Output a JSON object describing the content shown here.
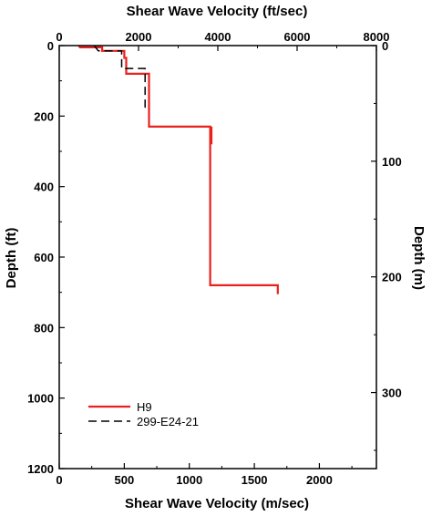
{
  "chart_data": {
    "type": "line",
    "title": "",
    "top_xlabel": "Shear Wave Velocity (ft/sec)",
    "bottom_xlabel": "Shear Wave Velocity (m/sec)",
    "left_ylabel": "Depth (ft)",
    "right_ylabel": "Depth (m)",
    "xlim_ms": [
      0,
      2438.4
    ],
    "xlim_fts": [
      0,
      8000
    ],
    "ylim_ft": [
      0,
      1200
    ],
    "ylim_m": [
      0,
      365.76
    ],
    "y_inverted": true,
    "grid": false,
    "legend_position": "bottom-left",
    "bottom_ticks": [
      "0",
      "500",
      "1000",
      "1500",
      "2000"
    ],
    "bottom_tick_values": [
      0,
      500,
      1000,
      1500,
      2000
    ],
    "top_ticks": [
      "0",
      "2000",
      "4000",
      "6000",
      "8000"
    ],
    "top_tick_values": [
      0,
      2000,
      4000,
      6000,
      8000
    ],
    "left_ticks": [
      "0",
      "200",
      "400",
      "600",
      "800",
      "1000",
      "1200"
    ],
    "left_tick_values": [
      0,
      200,
      400,
      600,
      800,
      1000,
      1200
    ],
    "right_ticks": [
      "0",
      "100",
      "200",
      "300"
    ],
    "right_tick_values": [
      0,
      100,
      200,
      300
    ],
    "series": [
      {
        "name": "H9",
        "color": "#e8201e",
        "style": "solid",
        "x_units": "m/sec",
        "y_units": "ft",
        "points": [
          [
            150,
            0
          ],
          [
            160,
            5
          ],
          [
            330,
            5
          ],
          [
            330,
            15
          ],
          [
            500,
            15
          ],
          [
            500,
            35
          ],
          [
            515,
            35
          ],
          [
            515,
            80
          ],
          [
            690,
            80
          ],
          [
            690,
            230
          ],
          [
            1160,
            230
          ],
          [
            1160,
            680
          ],
          [
            1680,
            680
          ],
          [
            1680,
            705
          ]
        ]
      },
      {
        "name": "299-E24-21",
        "color": "#000000",
        "style": "dashed",
        "x_units": "m/sec",
        "y_units": "ft",
        "points": [
          [
            270,
            0
          ],
          [
            300,
            15
          ],
          [
            480,
            15
          ],
          [
            480,
            65
          ],
          [
            660,
            65
          ],
          [
            660,
            185
          ]
        ]
      }
    ],
    "extra_segments": [
      {
        "series": "H9",
        "x_units": "m/sec",
        "y_units": "ft",
        "points": [
          [
            1170,
            230
          ],
          [
            1170,
            280
          ]
        ]
      }
    ]
  },
  "colors": {
    "h9": "#e8201e",
    "reference": "#000000",
    "axis": "#000000"
  }
}
